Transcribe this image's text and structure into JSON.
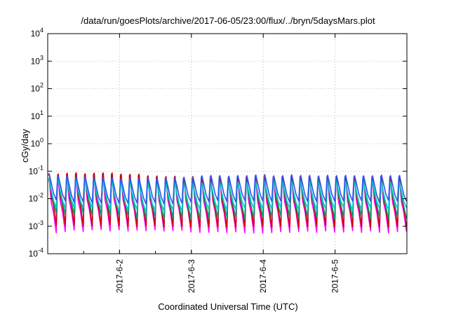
{
  "chart_data": {
    "type": "line",
    "title": "/data/run/goesPlots/archive/2017-06-05/23:00/flux/../bryn/5daysMars.plot",
    "xlabel": "Coordinated Universal Time (UTC)",
    "ylabel": "cGy/day",
    "x_range": [
      "2017-06-01T00:00",
      "2017-06-06T00:00"
    ],
    "x_ticks": [
      {
        "value": "2017-06-02",
        "label": "2017-6-2"
      },
      {
        "value": "2017-06-03",
        "label": "2017-6-3"
      },
      {
        "value": "2017-06-04",
        "label": "2017-6-4"
      },
      {
        "value": "2017-06-05",
        "label": "2017-6-5"
      }
    ],
    "y_scale": "log",
    "ylim": [
      0.0001,
      10000
    ],
    "y_ticks": [
      {
        "value": 0.0001,
        "base": "10",
        "exp": "-4"
      },
      {
        "value": 0.001,
        "base": "10",
        "exp": "-3"
      },
      {
        "value": 0.01,
        "base": "10",
        "exp": "-2"
      },
      {
        "value": 0.1,
        "base": "10",
        "exp": "-1"
      },
      {
        "value": 1,
        "base": "10",
        "exp": "0"
      },
      {
        "value": 10,
        "base": "10",
        "exp": "1"
      },
      {
        "value": 100,
        "base": "10",
        "exp": "2"
      },
      {
        "value": 1000,
        "base": "10",
        "exp": "3"
      },
      {
        "value": 10000,
        "base": "10",
        "exp": "4"
      }
    ],
    "grid": true,
    "legend": "none",
    "series": [
      {
        "color": "#ff00ff",
        "peak_range": [
          0.04,
          0.06
        ],
        "trough_range": [
          0.0005,
          0.0008
        ]
      },
      {
        "color": "#cc0000",
        "peak_range": [
          0.05,
          0.09
        ],
        "trough_range": [
          0.0008,
          0.0012
        ]
      },
      {
        "color": "#009e73",
        "peak_range": [
          0.035,
          0.06
        ],
        "trough_range": [
          0.0015,
          0.003
        ]
      },
      {
        "color": "#00cccc",
        "peak_range": [
          0.03,
          0.05
        ],
        "trough_range": [
          0.003,
          0.006
        ]
      },
      {
        "color": "#3355ee",
        "peak_range": [
          0.05,
          0.09
        ],
        "trough_range": [
          0.006,
          0.01
        ]
      }
    ],
    "cycles_per_day": 8
  }
}
